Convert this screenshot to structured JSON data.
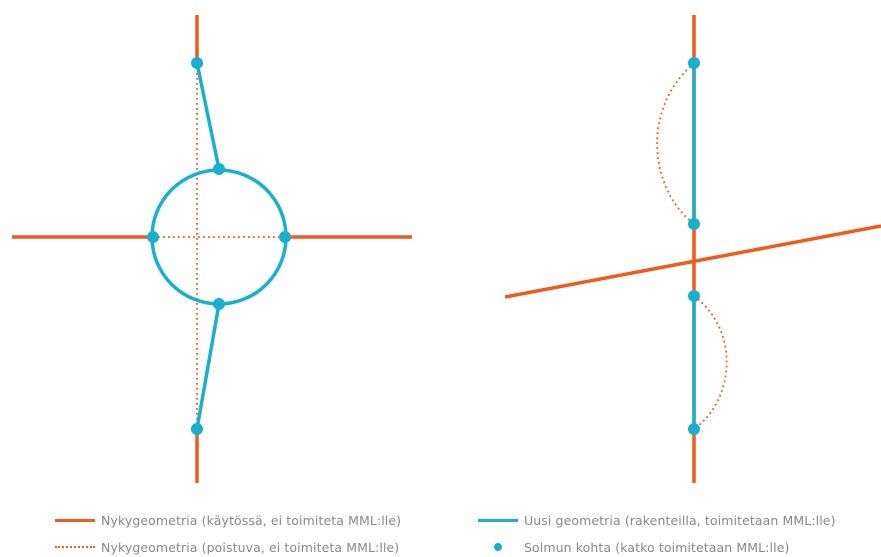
{
  "colors": {
    "existing": "#f05a1a",
    "new": "#18b0cc"
  },
  "legend": {
    "existing_solid": "Nykygeometria (käytössä, ei toimiteta MML:lle)",
    "existing_dotted": "Nykygeometria (poistuva, ei toimiteta MML:lle)",
    "new_geometry": "Uusi geometria (rakenteilla, toimitetaan MML:lle)",
    "node_location": "Solmun kohta (katko toimitetaan MML:lle)"
  }
}
